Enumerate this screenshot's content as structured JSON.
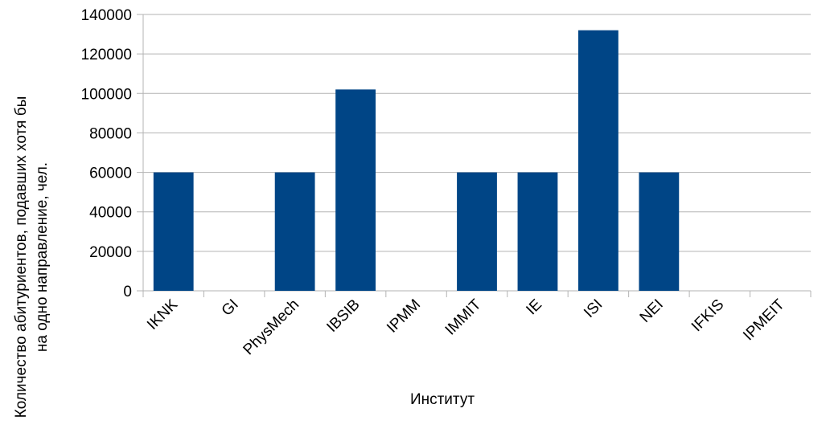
{
  "chart_data": {
    "type": "bar",
    "categories": [
      "IKNK",
      "GI",
      "PhysMech",
      "IBSIB",
      "IPMM",
      "IMMIT",
      "IE",
      "ISI",
      "NEI",
      "IFKIS",
      "IPMEIT"
    ],
    "values": [
      60000,
      0,
      60000,
      102000,
      0,
      60000,
      60000,
      132000,
      60000,
      0,
      0
    ],
    "title": "",
    "xlabel": "Институт",
    "ylabel_lines": [
      "Количество абитуриентов, подавших хотя бы",
      "на одно направление, чел."
    ],
    "ylim": [
      0,
      140000
    ],
    "yticks": [
      0,
      20000,
      40000,
      60000,
      80000,
      100000,
      120000,
      140000
    ],
    "grid": true,
    "legend": "none",
    "bar_color": "#004586",
    "grid_color": "#b3b3b3"
  }
}
